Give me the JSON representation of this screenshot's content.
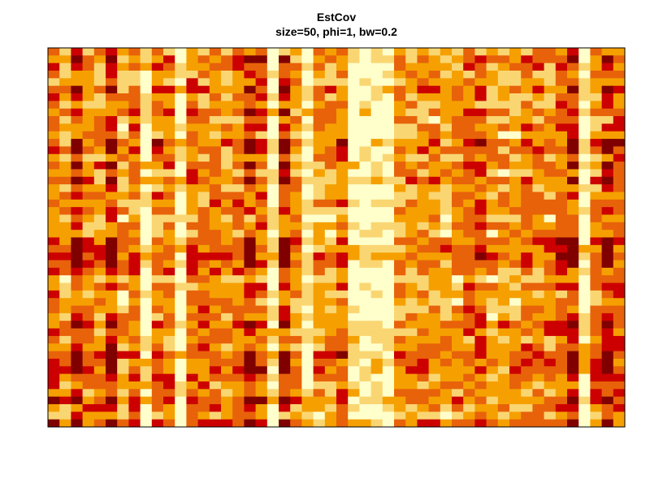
{
  "chart_data": {
    "type": "heatmap",
    "title": "EstCov",
    "subtitle": "size=50, phi=1, bw=0.2",
    "xlabel": "",
    "ylabel": "",
    "n_rows": 50,
    "n_cols": 50,
    "color_scale": [
      "#800000",
      "#CC0000",
      "#E8620A",
      "#F5A000",
      "#FAD672",
      "#FFFFCC"
    ],
    "seed": 50,
    "block_strength": 0.55
  }
}
